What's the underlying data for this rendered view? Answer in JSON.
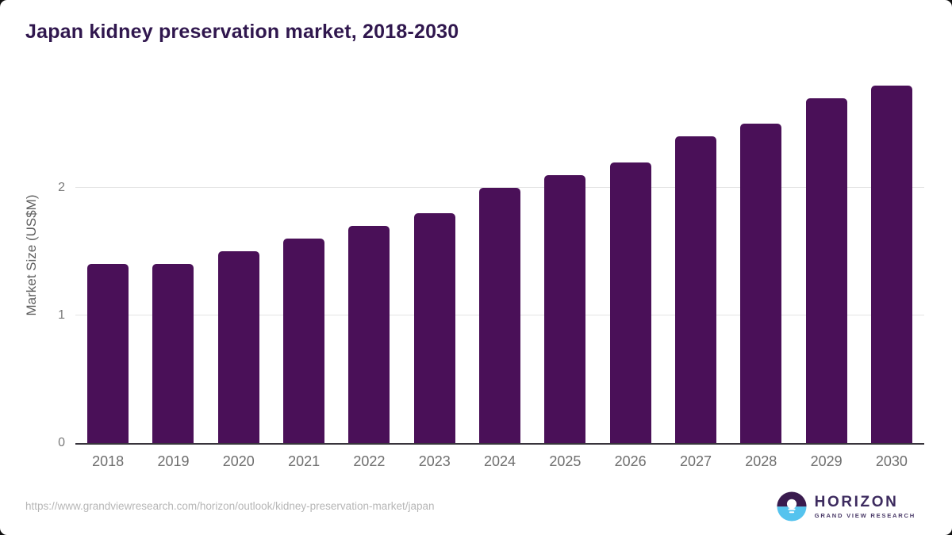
{
  "chart": {
    "title": "Japan kidney preservation market, 2018-2030",
    "ylabel": "Market Size (US$M)"
  },
  "chart_data": {
    "type": "bar",
    "title": "Japan kidney preservation market, 2018-2030",
    "categories": [
      "2018",
      "2019",
      "2020",
      "2021",
      "2022",
      "2023",
      "2024",
      "2025",
      "2026",
      "2027",
      "2028",
      "2029",
      "2030"
    ],
    "values": [
      1.4,
      1.4,
      1.5,
      1.6,
      1.7,
      1.8,
      2.0,
      2.1,
      2.2,
      2.4,
      2.5,
      2.7,
      2.8
    ],
    "xlabel": "",
    "ylabel": "Market Size (US$M)",
    "ylim": [
      0,
      2.93
    ],
    "yticks": [
      0,
      1,
      2
    ],
    "grid": "horizontal-at-yticks",
    "legend": "none",
    "bar_color": "#4a1058"
  },
  "footer": {
    "source_url": "https://www.grandviewresearch.com/horizon/outlook/kidney-preservation-market/japan",
    "logo": {
      "name": "HORIZON",
      "subtitle": "GRAND VIEW RESEARCH"
    }
  },
  "colors": {
    "title": "#30174e",
    "bar": "#4a1058",
    "gridline": "#e4e4e4",
    "axis_line": "#38343c",
    "tick_label": "#7a7a7a",
    "x_label": "#6e6e6e",
    "url_text": "#b6b6b6",
    "logo_purple": "#3a1b4e",
    "logo_blue": "#55c3ee"
  }
}
